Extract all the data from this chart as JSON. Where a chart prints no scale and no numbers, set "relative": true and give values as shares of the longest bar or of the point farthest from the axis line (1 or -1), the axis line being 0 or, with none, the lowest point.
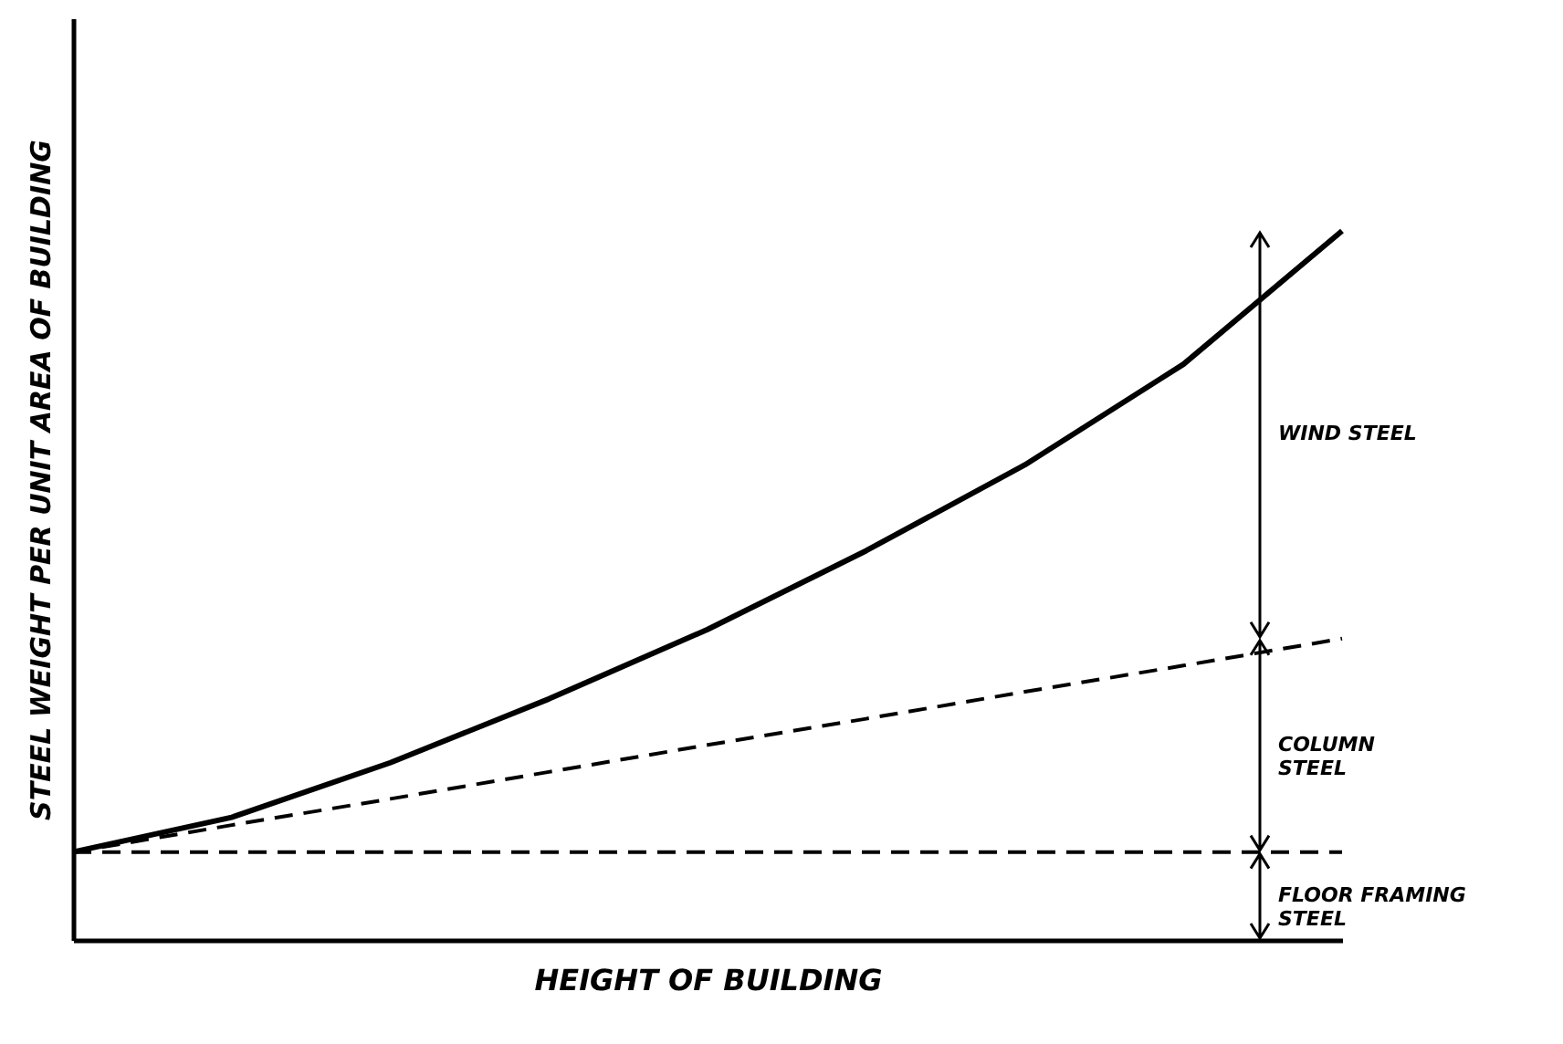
{
  "chart_data": {
    "type": "line",
    "relative": true,
    "xlabel": "HEIGHT OF BUILDING",
    "ylabel": "STEEL WEIGHT PER UNIT AREA OF BUILDING",
    "categories": [
      null,
      null,
      null,
      null,
      null,
      null,
      null,
      null,
      null
    ],
    "series": [
      {
        "color": "#000000",
        "line_style": "solid",
        "values": [
          0.124,
          0.173,
          0.25,
          0.34,
          0.438,
          0.549,
          0.67,
          0.812,
          1
        ]
      },
      {
        "color": "#000000",
        "line_style": "dashed",
        "values": [
          0.124,
          0.162,
          0.199,
          0.237,
          0.275,
          0.312,
          0.35,
          0.387,
          0.425
        ]
      },
      {
        "color": "#000000",
        "line_style": "dashed",
        "values": [
          0.124,
          0.124,
          0.124,
          0.124,
          0.124,
          0.124,
          0.124,
          0.124,
          0.124
        ]
      }
    ],
    "annotations": [
      "WIND STEEL",
      "COLUMN STEEL",
      "FLOOR FRAMING STEEL"
    ],
    "tick_labels": false,
    "grid": false,
    "marker": "none"
  }
}
